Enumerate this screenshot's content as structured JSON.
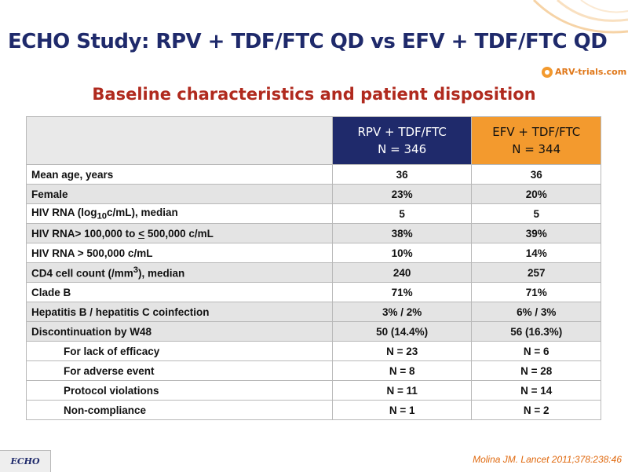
{
  "header": {
    "title": "ECHO Study: RPV + TDF/FTC QD vs EFV + TDF/FTC QD",
    "logo_text": "ARV-trials.com",
    "subtitle": "Baseline characteristics and patient disposition"
  },
  "table": {
    "columns": [
      {
        "line1": "RPV + TDF/FTC",
        "line2": "N = 346",
        "color": "#1f2a6b"
      },
      {
        "line1": "EFV + TDF/FTC",
        "line2": "N = 344",
        "color": "#f39a2e"
      }
    ],
    "rows": [
      {
        "label": "Mean age, years",
        "rpv": "36",
        "efv": "36"
      },
      {
        "label": "Female",
        "rpv": "23%",
        "efv": "20%"
      },
      {
        "label_parts": [
          "HIV RNA (log",
          "10",
          "c/mL), median"
        ],
        "rpv": "5",
        "efv": "5"
      },
      {
        "label_parts": [
          "HIV RNA> 100,000 to ",
          "<",
          " 500,000 c/mL"
        ],
        "rpv": "38%",
        "efv": "39%"
      },
      {
        "label": "HIV RNA > 500,000 c/mL",
        "rpv": "10%",
        "efv": "14%"
      },
      {
        "label_parts": [
          "CD4 cell count (/mm",
          "3",
          "), median"
        ],
        "rpv": "240",
        "efv": "257"
      },
      {
        "label": "Clade B",
        "rpv": "71%",
        "efv": "71%"
      },
      {
        "label": "Hepatitis B / hepatitis C coinfection",
        "rpv": "3% / 2%",
        "efv": "6% / 3%"
      },
      {
        "label": "Discontinuation by W48",
        "rpv": "50 (14.4%)",
        "efv": "56 (16.3%)"
      },
      {
        "label": "For lack of efficacy",
        "rpv": "N = 23",
        "efv": "N = 6"
      },
      {
        "label": "For adverse event",
        "rpv": "N = 8",
        "efv": "N = 28"
      },
      {
        "label": "Protocol violations",
        "rpv": "N = 11",
        "efv": "N = 14"
      },
      {
        "label": "Non-compliance",
        "rpv": "N = 1",
        "efv": "N = 2"
      }
    ]
  },
  "footer": {
    "badge": "ECHO",
    "citation": "Molina JM. Lancet 2011;378:238:46"
  }
}
